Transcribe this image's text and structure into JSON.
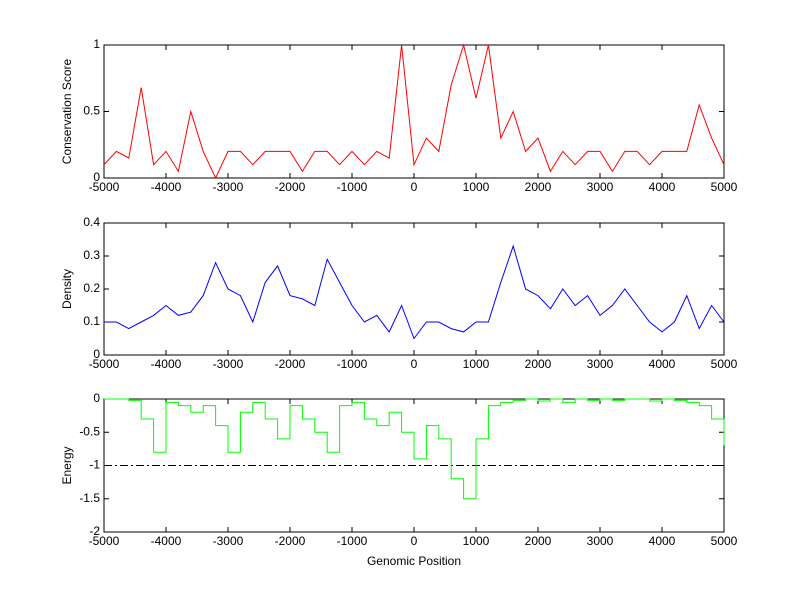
{
  "chart_data": [
    {
      "type": "line",
      "ylabel": "Conservation Score",
      "color": "#ff0000",
      "x": [
        -5000,
        -4800,
        -4600,
        -4400,
        -4200,
        -4000,
        -3800,
        -3600,
        -3400,
        -3200,
        -3000,
        -2800,
        -2600,
        -2400,
        -2200,
        -2000,
        -1800,
        -1600,
        -1400,
        -1200,
        -1000,
        -800,
        -600,
        -400,
        -200,
        0,
        200,
        400,
        600,
        800,
        1000,
        1200,
        1400,
        1600,
        1800,
        2000,
        2200,
        2400,
        2600,
        2800,
        3000,
        3200,
        3400,
        3600,
        3800,
        4000,
        4200,
        4400,
        4600,
        4800,
        5000
      ],
      "values": [
        0.1,
        0.2,
        0.15,
        0.68,
        0.1,
        0.2,
        0.05,
        0.5,
        0.2,
        0.0,
        0.2,
        0.2,
        0.1,
        0.2,
        0.2,
        0.2,
        0.05,
        0.2,
        0.2,
        0.1,
        0.2,
        0.1,
        0.2,
        0.15,
        1,
        0.1,
        0.3,
        0.2,
        0.7,
        1,
        0.6,
        1,
        0.3,
        0.5,
        0.2,
        0.3,
        0.05,
        0.2,
        0.1,
        0.2,
        0.2,
        0.05,
        0.2,
        0.2,
        0.1,
        0.2,
        0.2,
        0.2,
        0.55,
        0.3,
        0.1
      ],
      "xlim": [
        -5000,
        5000
      ],
      "xticks": [
        -5000,
        -4000,
        -3000,
        -2000,
        -1000,
        0,
        1000,
        2000,
        3000,
        4000,
        5000
      ],
      "ylim": [
        0,
        1
      ],
      "yticks": [
        0,
        0.5,
        1
      ]
    },
    {
      "type": "line",
      "ylabel": "Density",
      "color": "#0000ff",
      "x": [
        -5000,
        -4800,
        -4600,
        -4400,
        -4200,
        -4000,
        -3800,
        -3600,
        -3400,
        -3200,
        -3000,
        -2800,
        -2600,
        -2400,
        -2200,
        -2000,
        -1800,
        -1600,
        -1400,
        -1200,
        -1000,
        -800,
        -600,
        -400,
        -200,
        0,
        200,
        400,
        600,
        800,
        1000,
        1200,
        1400,
        1600,
        1800,
        2000,
        2200,
        2400,
        2600,
        2800,
        3000,
        3200,
        3400,
        3600,
        3800,
        4000,
        4200,
        4400,
        4600,
        4800,
        5000
      ],
      "values": [
        0.1,
        0.1,
        0.08,
        0.1,
        0.12,
        0.15,
        0.12,
        0.13,
        0.18,
        0.28,
        0.2,
        0.18,
        0.1,
        0.22,
        0.27,
        0.18,
        0.17,
        0.15,
        0.29,
        0.22,
        0.15,
        0.1,
        0.12,
        0.07,
        0.15,
        0.05,
        0.1,
        0.1,
        0.08,
        0.07,
        0.1,
        0.1,
        0.22,
        0.33,
        0.2,
        0.18,
        0.14,
        0.2,
        0.15,
        0.18,
        0.12,
        0.15,
        0.2,
        0.15,
        0.1,
        0.07,
        0.1,
        0.18,
        0.08,
        0.15,
        0.1
      ],
      "xlim": [
        -5000,
        5000
      ],
      "xticks": [
        -5000,
        -4000,
        -3000,
        -2000,
        -1000,
        0,
        1000,
        2000,
        3000,
        4000,
        5000
      ],
      "ylim": [
        0,
        0.4
      ],
      "yticks": [
        0,
        0.1,
        0.2,
        0.3,
        0.4
      ]
    },
    {
      "type": "step",
      "ylabel": "Energy",
      "xlabel": "Genomic Position",
      "color": "#00ff00",
      "x": [
        -5000,
        -4800,
        -4600,
        -4400,
        -4200,
        -4000,
        -3800,
        -3600,
        -3400,
        -3200,
        -3000,
        -2800,
        -2600,
        -2400,
        -2200,
        -2000,
        -1800,
        -1600,
        -1400,
        -1200,
        -1000,
        -800,
        -600,
        -400,
        -200,
        0,
        200,
        400,
        600,
        800,
        1000,
        1200,
        1400,
        1600,
        1800,
        2000,
        2200,
        2400,
        2600,
        2800,
        3000,
        3200,
        3400,
        3600,
        3800,
        4000,
        4200,
        4400,
        4600,
        4800,
        5000
      ],
      "values": [
        0,
        0,
        -0.02,
        -0.3,
        -0.8,
        -0.05,
        -0.1,
        -0.2,
        -0.1,
        -0.4,
        -0.8,
        -0.2,
        -0.05,
        -0.3,
        -0.6,
        -0.1,
        -0.3,
        -0.5,
        -0.8,
        -0.1,
        -0.05,
        -0.3,
        -0.4,
        -0.2,
        -0.5,
        -0.9,
        -0.4,
        -0.6,
        -1.2,
        -1.5,
        -0.6,
        -0.1,
        -0.05,
        -0.02,
        0,
        -0.03,
        0,
        -0.05,
        0,
        -0.02,
        0,
        -0.02,
        0,
        0,
        -0.03,
        0,
        -0.02,
        -0.05,
        -0.1,
        -0.3,
        -0.7
      ],
      "reference_line": {
        "value": -1,
        "color": "#000000",
        "style": "dashdot"
      },
      "xlim": [
        -5000,
        5000
      ],
      "xticks": [
        -5000,
        -4000,
        -3000,
        -2000,
        -1000,
        0,
        1000,
        2000,
        3000,
        4000,
        5000
      ],
      "ylim": [
        -2,
        0
      ],
      "yticks": [
        -2,
        -1.5,
        -1,
        -0.5,
        0
      ]
    }
  ]
}
